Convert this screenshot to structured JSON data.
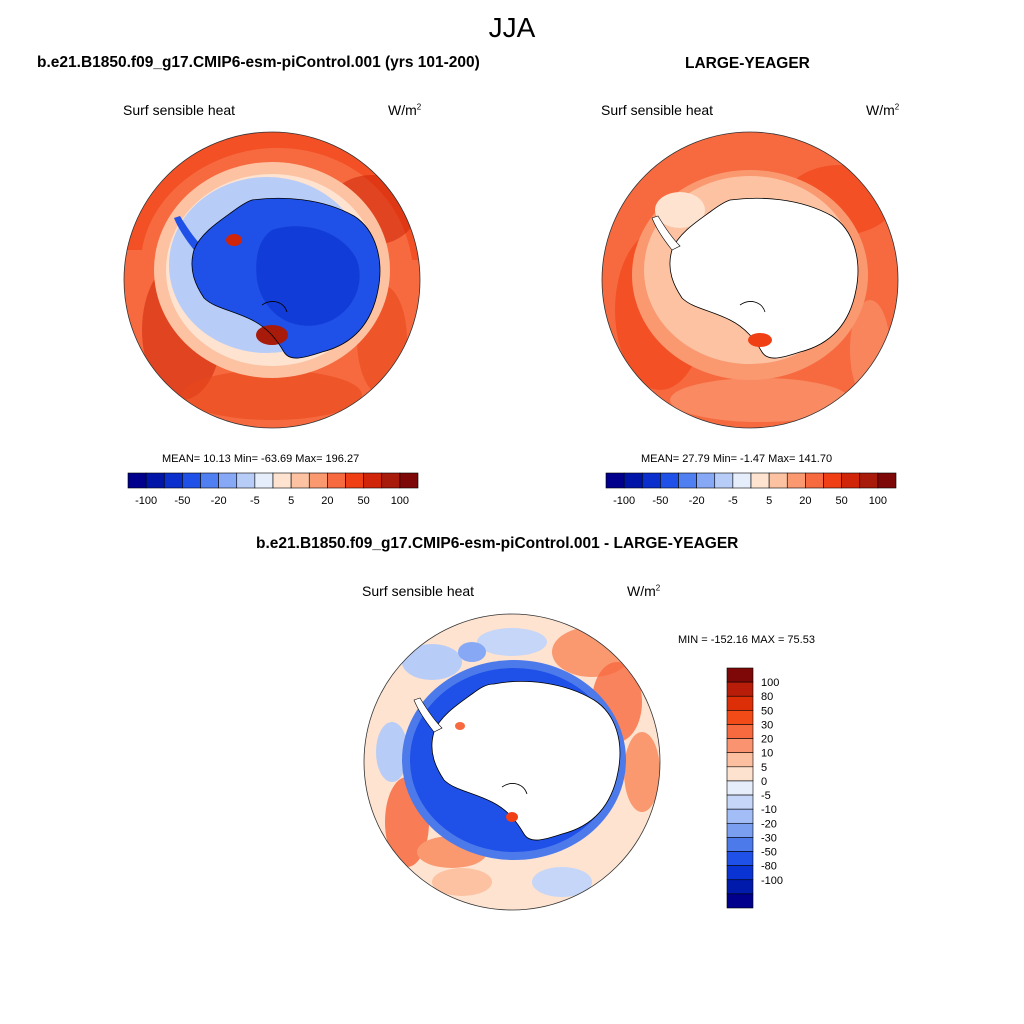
{
  "figure": {
    "season": "JJA"
  },
  "panels": [
    {
      "case_title": "b.e21.B1850.f09_g17.CMIP6-esm-piControl.001 (yrs 101-200)",
      "variable": "Surf sensible heat",
      "units_base": "W/m",
      "units_exp": "2",
      "stats_text": "MEAN=  10.13  Min= -63.69  Max= 196.27",
      "field": "control"
    },
    {
      "case_title": "LARGE-YEAGER",
      "variable": "Surf sensible heat",
      "units_base": "W/m",
      "units_exp": "2",
      "stats_text": "MEAN=  27.79  Min=  -1.47  Max= 141.70",
      "field": "obs"
    },
    {
      "case_title": "b.e21.B1850.f09_g17.CMIP6-esm-piControl.001 - LARGE-YEAGER",
      "variable": "Surf sensible heat",
      "units_base": "W/m",
      "units_exp": "2",
      "stats_text": "MIN = -152.16 MAX =  75.53",
      "field": "diff"
    }
  ],
  "colorbar_horizontal": {
    "colors": [
      "#00008c",
      "#0015a8",
      "#0a2fcc",
      "#1f50e8",
      "#4f7ff0",
      "#86a8f5",
      "#b8ccf8",
      "#e6eefb",
      "#fde3d0",
      "#fcc2a2",
      "#fa9870",
      "#f76a40",
      "#f03f14",
      "#d02508",
      "#a81a0a",
      "#7e0808"
    ],
    "labels": [
      "-100",
      "-50",
      "-20",
      "-5",
      "5",
      "20",
      "50",
      "100"
    ]
  },
  "colorbar_vertical": {
    "colors_top_to_bottom": [
      "#7e0808",
      "#b81d0a",
      "#dc2f07",
      "#f24b17",
      "#f76a40",
      "#fa9470",
      "#fcbfa0",
      "#fde2cf",
      "#e6eefb",
      "#c6d6f8",
      "#a3bdf6",
      "#7b9ff0",
      "#4c7aeb",
      "#1f50e8",
      "#0a33d4",
      "#001aab",
      "#00008c"
    ],
    "labels": [
      "100",
      "80",
      "50",
      "30",
      "20",
      "10",
      "5",
      "0",
      "-5",
      "-10",
      "-20",
      "-30",
      "-50",
      "-80",
      "-100"
    ]
  }
}
